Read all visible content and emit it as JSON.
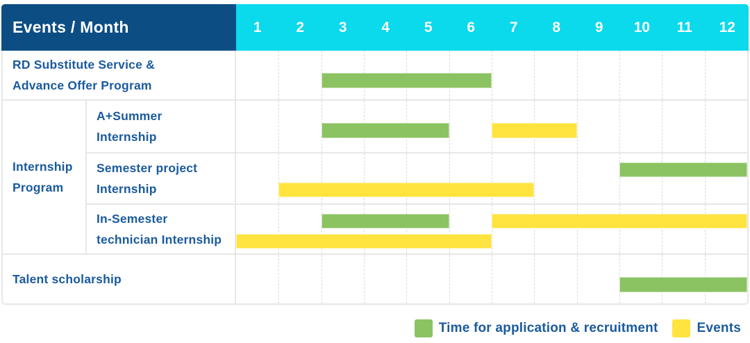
{
  "header": {
    "title": "Events / Month"
  },
  "colors": {
    "header_left_bg": "#0C4D84",
    "header_months_bg": "#0BD9EC",
    "label_text": "#1A5A9E",
    "application_bar": "#8BC362",
    "events_bar": "#FFE33F",
    "grid_line": "#DADADA",
    "border": "#E7E7E7"
  },
  "chart_data": {
    "type": "gantt",
    "unit": "month",
    "x_ticks": [
      "1",
      "2",
      "3",
      "4",
      "5",
      "6",
      "7",
      "8",
      "9",
      "10",
      "11",
      "12"
    ],
    "x_range": [
      1,
      12
    ],
    "corner_label": "Events / Month",
    "group_label": "Internship\nProgram",
    "legend": [
      {
        "type": "application",
        "label": "Time for application & recruitment"
      },
      {
        "type": "events",
        "label": "Events"
      }
    ],
    "rows": [
      {
        "label": "RD Substitute Service &\nAdvance Offer Program",
        "group": null,
        "bars": [
          {
            "type": "application",
            "start_month": 3,
            "end_month": 6,
            "line": 0
          }
        ]
      },
      {
        "label": "A+Summer\nInternship",
        "group": "Internship Program",
        "bars": [
          {
            "type": "application",
            "start_month": 3,
            "end_month": 5,
            "line": 0
          },
          {
            "type": "events",
            "start_month": 7,
            "end_month": 8,
            "line": 0
          }
        ]
      },
      {
        "label": "Semester project\nInternship",
        "group": "Internship Program",
        "bars": [
          {
            "type": "application",
            "start_month": 10,
            "end_month": 12,
            "line": 0
          },
          {
            "type": "events",
            "start_month": 2,
            "end_month": 7,
            "line": 1
          }
        ]
      },
      {
        "label": "In-Semester\ntechnician Internship",
        "group": "Internship Program",
        "bars": [
          {
            "type": "application",
            "start_month": 3,
            "end_month": 5,
            "line": 0
          },
          {
            "type": "events",
            "start_month": 7,
            "end_month": 12,
            "line": 0
          },
          {
            "type": "events",
            "start_month": 1,
            "end_month": 6,
            "line": 1
          }
        ]
      },
      {
        "label": "Talent scholarship",
        "group": null,
        "bars": [
          {
            "type": "application",
            "start_month": 10,
            "end_month": 12,
            "line": 0
          }
        ]
      }
    ]
  }
}
